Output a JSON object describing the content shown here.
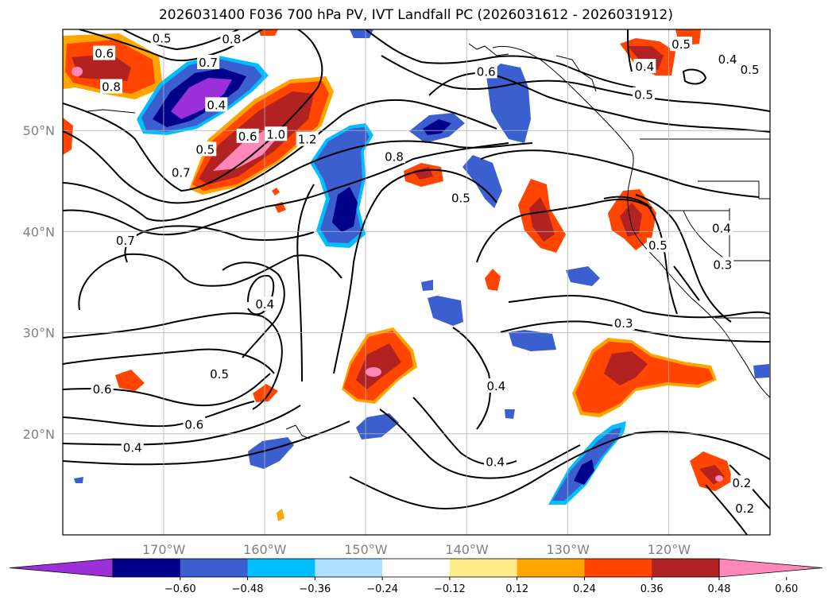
{
  "title": "2026031400 F036 700 hPa PV, IVT Landfall PC (2026031612 - 2026031912)",
  "map": {
    "lon_range": [
      -180,
      -110
    ],
    "lat_range": [
      10,
      60
    ],
    "lon_ticks": [
      {
        "value": -170,
        "label": "170°W"
      },
      {
        "value": -160,
        "label": "160°W"
      },
      {
        "value": -150,
        "label": "150°W"
      },
      {
        "value": -140,
        "label": "140°W"
      },
      {
        "value": -130,
        "label": "130°W"
      },
      {
        "value": -120,
        "label": "120°W"
      }
    ],
    "lat_ticks": [
      {
        "value": 20,
        "label": "20°N"
      },
      {
        "value": 30,
        "label": "30°N"
      },
      {
        "value": 40,
        "label": "40°N"
      },
      {
        "value": 50,
        "label": "50°N"
      }
    ],
    "gridlines": true,
    "contour_labels": [
      {
        "text": "0.5",
        "lon": -170.2,
        "lat": 59.1
      },
      {
        "text": "0.8",
        "lon": -163.3,
        "lat": 59.0
      },
      {
        "text": "0.6",
        "lon": -175.9,
        "lat": 57.6
      },
      {
        "text": "0.7",
        "lon": -165.6,
        "lat": 56.7
      },
      {
        "text": "0.8",
        "lon": -175.2,
        "lat": 54.3
      },
      {
        "text": "0.4",
        "lon": -164.8,
        "lat": 52.5
      },
      {
        "text": "0.6",
        "lon": -161.7,
        "lat": 49.4
      },
      {
        "text": "1.0",
        "lon": -158.9,
        "lat": 49.6
      },
      {
        "text": "1.2",
        "lon": -155.8,
        "lat": 49.1
      },
      {
        "text": "0.5",
        "lon": -165.9,
        "lat": 48.1
      },
      {
        "text": "0.7",
        "lon": -168.3,
        "lat": 45.8
      },
      {
        "text": "0.8",
        "lon": -147.2,
        "lat": 47.4
      },
      {
        "text": "0.5",
        "lon": -140.6,
        "lat": 43.3
      },
      {
        "text": "0.7",
        "lon": -173.8,
        "lat": 39.1
      },
      {
        "text": "0.4",
        "lon": -160.0,
        "lat": 32.8
      },
      {
        "text": "0.5",
        "lon": -164.5,
        "lat": 25.9
      },
      {
        "text": "0.6",
        "lon": -176.1,
        "lat": 24.4
      },
      {
        "text": "0.6",
        "lon": -167.0,
        "lat": 20.9
      },
      {
        "text": "0.4",
        "lon": -173.1,
        "lat": 18.6
      },
      {
        "text": "0.4",
        "lon": -137.1,
        "lat": 24.7
      },
      {
        "text": "0.4",
        "lon": -137.2,
        "lat": 17.2
      },
      {
        "text": "0.3",
        "lon": -124.5,
        "lat": 30.9
      },
      {
        "text": "0.5",
        "lon": -121.1,
        "lat": 38.6
      },
      {
        "text": "0.3",
        "lon": -114.7,
        "lat": 36.7
      },
      {
        "text": "0.4",
        "lon": -114.8,
        "lat": 40.3
      },
      {
        "text": "0.4",
        "lon": -122.4,
        "lat": 56.3
      },
      {
        "text": "0.5",
        "lon": -122.5,
        "lat": 53.5
      },
      {
        "text": "0.5",
        "lon": -118.8,
        "lat": 58.5
      },
      {
        "text": "0.4",
        "lon": -114.2,
        "lat": 57.0
      },
      {
        "text": "0.5",
        "lon": -112.0,
        "lat": 56.0
      },
      {
        "text": "0.6",
        "lon": -138.1,
        "lat": 55.8
      },
      {
        "text": "0.2",
        "lon": -112.8,
        "lat": 15.1
      },
      {
        "text": "0.2",
        "lon": -112.5,
        "lat": 12.6
      }
    ]
  },
  "colorbar": {
    "ticks": [
      "−0.60",
      "−0.48",
      "−0.36",
      "−0.24",
      "−0.12",
      "0.12",
      "0.24",
      "0.36",
      "0.48",
      "0.60"
    ],
    "colors": [
      "#9b30d9",
      "#00008b",
      "#3c5fd0",
      "#00bfff",
      "#ade0ff",
      "#ffffff",
      "#ffec8b",
      "#ffa500",
      "#ff4500",
      "#b22222",
      "#ff88b8"
    ],
    "extend": "both"
  }
}
